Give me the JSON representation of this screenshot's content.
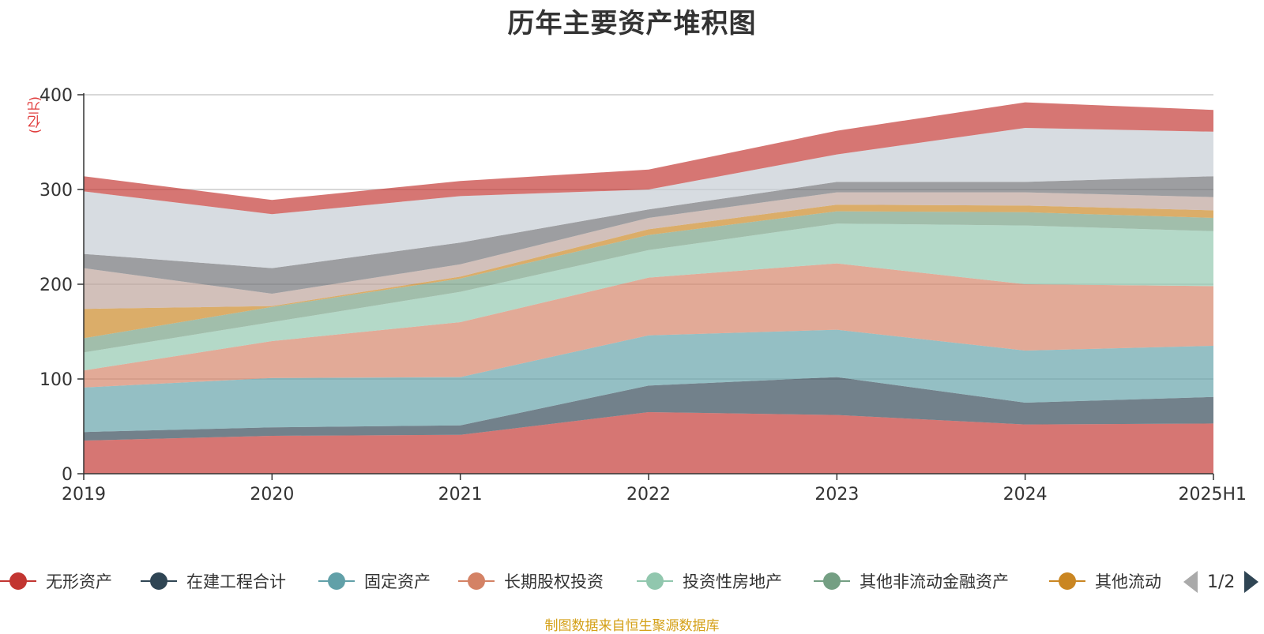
{
  "title": "历年主要资产堆积图",
  "unit": "(亿元)",
  "source": "制图数据来自恒生聚源数据库",
  "pager": {
    "text": "1/2"
  },
  "chart_data": {
    "type": "area",
    "stacked": true,
    "x": [
      "2019",
      "2020",
      "2021",
      "2022",
      "2023",
      "2024",
      "2025H1"
    ],
    "ylim": [
      0,
      400
    ],
    "yticks": [
      0,
      100,
      200,
      300,
      400
    ],
    "grid": true,
    "legend_position": "bottom",
    "series": [
      {
        "name": "无形资产",
        "color": "#c23531",
        "values": [
          35,
          40,
          41,
          65,
          62,
          52,
          53
        ]
      },
      {
        "name": "在建工程合计",
        "color": "#2f4554",
        "values": [
          9,
          9,
          10,
          28,
          40,
          23,
          28
        ]
      },
      {
        "name": "固定资产",
        "color": "#61a0a8",
        "values": [
          47,
          52,
          51,
          53,
          50,
          55,
          54
        ]
      },
      {
        "name": "长期股权投资",
        "color": "#d48265",
        "values": [
          18,
          39,
          58,
          61,
          70,
          70,
          63
        ]
      },
      {
        "name": "投资性房地产",
        "color": "#91c7ae",
        "values": [
          19,
          20,
          32,
          29,
          42,
          62,
          58
        ]
      },
      {
        "name": "其他非流动金融资产",
        "color": "#749f83",
        "values": [
          15,
          16,
          14,
          16,
          13,
          14,
          14
        ]
      },
      {
        "name": "其他流动",
        "color": "#ca8622",
        "values": [
          31,
          1,
          2,
          6,
          7,
          7,
          8
        ]
      },
      {
        "name": "",
        "color": "#bda29a",
        "values": [
          43,
          13,
          13,
          12,
          13,
          14,
          14
        ]
      },
      {
        "name": "",
        "color": "#6e7074",
        "values": [
          15,
          27,
          23,
          9,
          11,
          11,
          22
        ]
      },
      {
        "name": "",
        "color": "#c4ccd3",
        "values": [
          66,
          57,
          49,
          21,
          29,
          57,
          47
        ]
      },
      {
        "name": "",
        "color": "#c23531",
        "values": [
          16,
          15,
          16,
          21,
          25,
          27,
          23
        ]
      }
    ]
  }
}
